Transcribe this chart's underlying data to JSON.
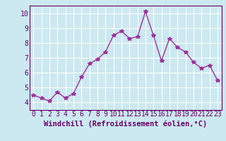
{
  "x": [
    0,
    1,
    2,
    3,
    4,
    5,
    6,
    7,
    8,
    9,
    10,
    11,
    12,
    13,
    14,
    15,
    16,
    17,
    18,
    19,
    20,
    21,
    22,
    23
  ],
  "y": [
    4.5,
    4.3,
    4.1,
    4.7,
    4.3,
    4.6,
    5.7,
    6.6,
    6.9,
    7.4,
    8.5,
    8.8,
    8.3,
    8.4,
    10.1,
    8.5,
    6.8,
    8.3,
    7.7,
    7.4,
    6.7,
    6.3,
    6.5,
    5.5
  ],
  "xlabel": "Windchill (Refroidissement éolien,°C)",
  "xlim": [
    -0.5,
    23.5
  ],
  "ylim": [
    3.5,
    10.5
  ],
  "yticks": [
    4,
    5,
    6,
    7,
    8,
    9,
    10
  ],
  "xticks": [
    0,
    1,
    2,
    3,
    4,
    5,
    6,
    7,
    8,
    9,
    10,
    11,
    12,
    13,
    14,
    15,
    16,
    17,
    18,
    19,
    20,
    21,
    22,
    23
  ],
  "line_color": "#993399",
  "marker_color": "#993399",
  "bg_color": "#cce8f0",
  "grid_color": "#ffffff",
  "label_color": "#660066",
  "xlabel_fontsize": 7.5,
  "tick_fontsize": 7
}
